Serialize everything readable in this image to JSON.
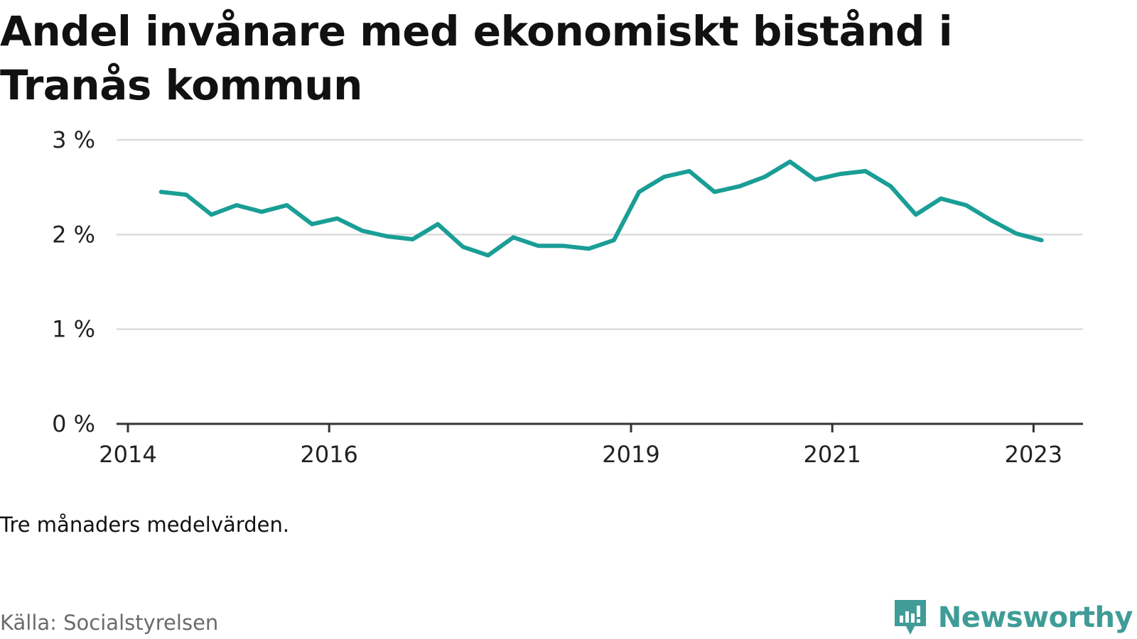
{
  "title": "Andel invånare med ekonomiskt bistånd i Tranås kommun",
  "note": "Tre månaders medelvärden.",
  "source": "Källa: Socialstyrelsen",
  "brand": "Newsworthy",
  "colors": {
    "line": "#1a9e96",
    "grid": "#dcdcdc",
    "axis": "#333333",
    "brand": "#3f9c97"
  },
  "chart_data": {
    "type": "line",
    "title": "Andel invånare med ekonomiskt bistånd i Tranås kommun",
    "xlabel": "",
    "ylabel": "",
    "ylim": [
      0,
      3
    ],
    "xlim": [
      2014.0,
      2023.53
    ],
    "grid": true,
    "y_ticks": [
      {
        "value": 0,
        "label": "0 %"
      },
      {
        "value": 1,
        "label": "1 %"
      },
      {
        "value": 2,
        "label": "2 %"
      },
      {
        "value": 3,
        "label": "3 %"
      }
    ],
    "x_ticks": [
      {
        "value": 2014,
        "label": "2014"
      },
      {
        "value": 2016,
        "label": "2016"
      },
      {
        "value": 2019,
        "label": "2019"
      },
      {
        "value": 2021,
        "label": "2021"
      },
      {
        "value": 2023,
        "label": "2023"
      }
    ],
    "series": [
      {
        "x": [
          2014.33,
          2014.58,
          2014.83,
          2015.08,
          2015.33,
          2015.58,
          2015.83,
          2016.08,
          2016.33,
          2016.58,
          2016.83,
          2017.08,
          2017.33,
          2017.58,
          2017.83,
          2018.08,
          2018.33,
          2018.58,
          2018.83,
          2019.08,
          2019.33,
          2019.58,
          2019.83,
          2020.08,
          2020.33,
          2020.58,
          2020.83,
          2021.08,
          2021.33,
          2021.58,
          2021.83,
          2022.08,
          2022.33,
          2022.58,
          2022.83,
          2023.08
        ],
        "values": [
          2.45,
          2.42,
          2.21,
          2.31,
          2.24,
          2.31,
          2.11,
          2.17,
          2.04,
          1.98,
          1.95,
          2.11,
          1.87,
          1.78,
          1.97,
          1.88,
          1.88,
          1.85,
          1.94,
          2.45,
          2.61,
          2.67,
          2.45,
          2.51,
          2.61,
          2.77,
          2.58,
          2.64,
          2.67,
          2.51,
          2.21,
          2.38,
          2.31,
          2.15,
          2.01,
          1.94
        ]
      }
    ]
  }
}
